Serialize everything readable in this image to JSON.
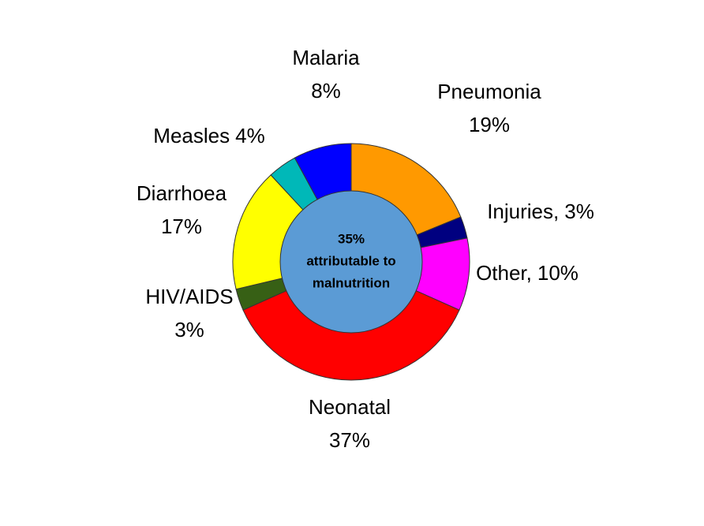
{
  "chart_data": {
    "type": "donut",
    "categories": [
      "Pneumonia",
      "Injuries,",
      "Other,",
      "Neonatal",
      "HIV/AIDS",
      "Diarrhoea",
      "Measles",
      "Malaria"
    ],
    "values": [
      19,
      3,
      10,
      37,
      3,
      17,
      4,
      8
    ],
    "value_labels": [
      "19%",
      "3%",
      "10%",
      "37%",
      "3%",
      "17%",
      "4%",
      "8%"
    ],
    "colors": [
      "#ff9900",
      "#000080",
      "#ff00ff",
      "#ff0000",
      "#376015",
      "#ffff00",
      "#00b8b8",
      "#0000ff"
    ],
    "center_label": [
      "35%",
      "attributable to",
      "malnutrition"
    ],
    "center_color": "#5b9bd5"
  }
}
